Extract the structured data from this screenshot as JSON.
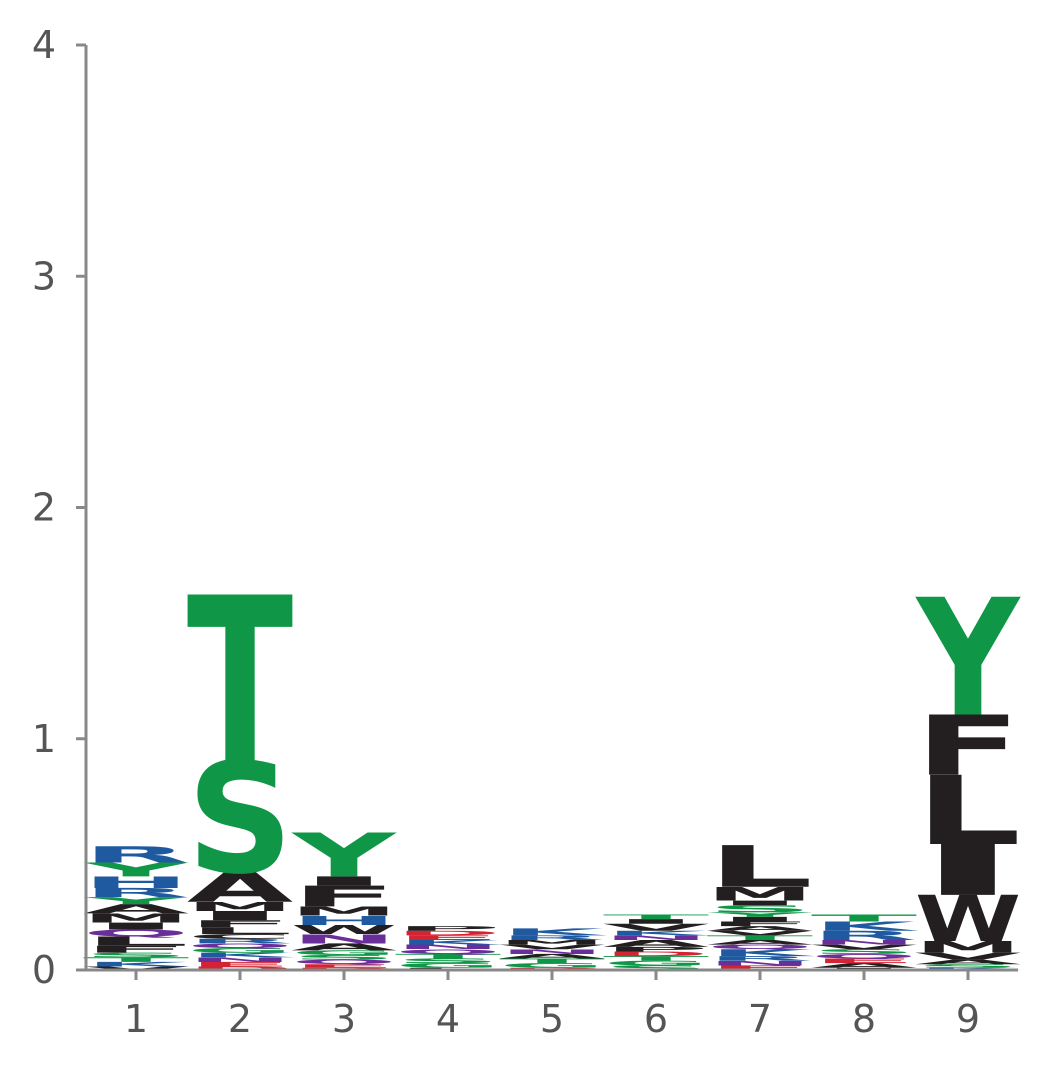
{
  "colors": {
    "hydrophobic": "#231f20",
    "polar": "#0f9747",
    "basic": "#1f5aa0",
    "acidic": "#d42433",
    "amide": "#6a2e9a",
    "axis": "#888888",
    "tick_text": "#555555"
  },
  "chart_data": {
    "type": "sequence-logo",
    "title": "",
    "xlabel": "",
    "ylabel": "",
    "ylim": [
      0,
      4
    ],
    "yticks": [
      0,
      1,
      2,
      3,
      4
    ],
    "positions": [
      1,
      2,
      3,
      4,
      5,
      6,
      7,
      8,
      9
    ],
    "letter_heights": [
      {
        "position": 1,
        "letters": [
          {
            "aa": "V",
            "h": 0.015
          },
          {
            "aa": "K",
            "h": 0.02
          },
          {
            "aa": "T",
            "h": 0.02
          },
          {
            "aa": "S",
            "h": 0.02
          },
          {
            "aa": "F",
            "h": 0.03
          },
          {
            "aa": "L",
            "h": 0.04
          },
          {
            "aa": "Q",
            "h": 0.03
          },
          {
            "aa": "I",
            "h": 0.03
          },
          {
            "aa": "M",
            "h": 0.04
          },
          {
            "aa": "A",
            "h": 0.04
          },
          {
            "aa": "Y",
            "h": 0.03
          },
          {
            "aa": "R",
            "h": 0.04
          },
          {
            "aa": "H",
            "h": 0.05
          },
          {
            "aa": "Y",
            "h": 0.06
          },
          {
            "aa": "R",
            "h": 0.07
          }
        ]
      },
      {
        "position": 2,
        "letters": [
          {
            "aa": "D",
            "h": 0.015
          },
          {
            "aa": "E",
            "h": 0.02
          },
          {
            "aa": "N",
            "h": 0.02
          },
          {
            "aa": "K",
            "h": 0.02
          },
          {
            "aa": "G",
            "h": 0.02
          },
          {
            "aa": "Q",
            "h": 0.02
          },
          {
            "aa": "R",
            "h": 0.02
          },
          {
            "aa": "C",
            "h": 0.02
          },
          {
            "aa": "L",
            "h": 0.03
          },
          {
            "aa": "F",
            "h": 0.03
          },
          {
            "aa": "I",
            "h": 0.04
          },
          {
            "aa": "M",
            "h": 0.04
          },
          {
            "aa": "A",
            "h": 0.13
          },
          {
            "aa": "S",
            "h": 0.48
          },
          {
            "aa": "T",
            "h": 0.72
          }
        ]
      },
      {
        "position": 3,
        "letters": [
          {
            "aa": "D",
            "h": 0.01
          },
          {
            "aa": "E",
            "h": 0.015
          },
          {
            "aa": "Q",
            "h": 0.02
          },
          {
            "aa": "S",
            "h": 0.02
          },
          {
            "aa": "G",
            "h": 0.02
          },
          {
            "aa": "A",
            "h": 0.03
          },
          {
            "aa": "N",
            "h": 0.04
          },
          {
            "aa": "W",
            "h": 0.04
          },
          {
            "aa": "H",
            "h": 0.04
          },
          {
            "aa": "M",
            "h": 0.04
          },
          {
            "aa": "F",
            "h": 0.09
          },
          {
            "aa": "I",
            "h": 0.04
          },
          {
            "aa": "Y",
            "h": 0.19
          }
        ]
      },
      {
        "position": 4,
        "letters": [
          {
            "aa": "L",
            "h": 0.01
          },
          {
            "aa": "G",
            "h": 0.02
          },
          {
            "aa": "S",
            "h": 0.02
          },
          {
            "aa": "T",
            "h": 0.02
          },
          {
            "aa": "Q",
            "h": 0.02
          },
          {
            "aa": "N",
            "h": 0.02
          },
          {
            "aa": "K",
            "h": 0.02
          },
          {
            "aa": "E",
            "h": 0.02
          },
          {
            "aa": "D",
            "h": 0.02
          },
          {
            "aa": "P",
            "h": 0.02
          }
        ]
      },
      {
        "position": 5,
        "letters": [
          {
            "aa": "D",
            "h": 0.01
          },
          {
            "aa": "G",
            "h": 0.02
          },
          {
            "aa": "T",
            "h": 0.02
          },
          {
            "aa": "A",
            "h": 0.02
          },
          {
            "aa": "N",
            "h": 0.02
          },
          {
            "aa": "V",
            "h": 0.02
          },
          {
            "aa": "M",
            "h": 0.02
          },
          {
            "aa": "R",
            "h": 0.02
          },
          {
            "aa": "K",
            "h": 0.03
          }
        ]
      },
      {
        "position": 6,
        "letters": [
          {
            "aa": "S",
            "h": 0.02
          },
          {
            "aa": "G",
            "h": 0.02
          },
          {
            "aa": "T",
            "h": 0.02
          },
          {
            "aa": "D",
            "h": 0.02
          },
          {
            "aa": "P",
            "h": 0.02
          },
          {
            "aa": "A",
            "h": 0.03
          },
          {
            "aa": "N",
            "h": 0.02
          },
          {
            "aa": "K",
            "h": 0.02
          },
          {
            "aa": "V",
            "h": 0.03
          },
          {
            "aa": "I",
            "h": 0.02
          },
          {
            "aa": "T",
            "h": 0.02
          }
        ]
      },
      {
        "position": 7,
        "letters": [
          {
            "aa": "E",
            "h": 0.02
          },
          {
            "aa": "N",
            "h": 0.02
          },
          {
            "aa": "R",
            "h": 0.02
          },
          {
            "aa": "K",
            "h": 0.03
          },
          {
            "aa": "Q",
            "h": 0.02
          },
          {
            "aa": "A",
            "h": 0.02
          },
          {
            "aa": "T",
            "h": 0.02
          },
          {
            "aa": "V",
            "h": 0.02
          },
          {
            "aa": "A",
            "h": 0.02
          },
          {
            "aa": "F",
            "h": 0.02
          },
          {
            "aa": "I",
            "h": 0.02
          },
          {
            "aa": "Y",
            "h": 0.02
          },
          {
            "aa": "S",
            "h": 0.03
          },
          {
            "aa": "I",
            "h": 0.02
          },
          {
            "aa": "M",
            "h": 0.06
          },
          {
            "aa": "L",
            "h": 0.18
          }
        ]
      },
      {
        "position": 8,
        "letters": [
          {
            "aa": "I",
            "h": 0.01
          },
          {
            "aa": "A",
            "h": 0.02
          },
          {
            "aa": "E",
            "h": 0.02
          },
          {
            "aa": "Q",
            "h": 0.02
          },
          {
            "aa": "S",
            "h": 0.02
          },
          {
            "aa": "V",
            "h": 0.02
          },
          {
            "aa": "N",
            "h": 0.02
          },
          {
            "aa": "R",
            "h": 0.04
          },
          {
            "aa": "K",
            "h": 0.04
          },
          {
            "aa": "T",
            "h": 0.03
          }
        ]
      },
      {
        "position": 9,
        "letters": [
          {
            "aa": "K",
            "h": 0.01
          },
          {
            "aa": "S",
            "h": 0.015
          },
          {
            "aa": "A",
            "h": 0.02
          },
          {
            "aa": "V",
            "h": 0.03
          },
          {
            "aa": "M",
            "h": 0.05
          },
          {
            "aa": "W",
            "h": 0.2
          },
          {
            "aa": "I",
            "h": 0.22
          },
          {
            "aa": "L",
            "h": 0.3
          },
          {
            "aa": "F",
            "h": 0.26
          },
          {
            "aa": "Y",
            "h": 0.51
          }
        ]
      }
    ],
    "grid": false,
    "legend": "none"
  }
}
